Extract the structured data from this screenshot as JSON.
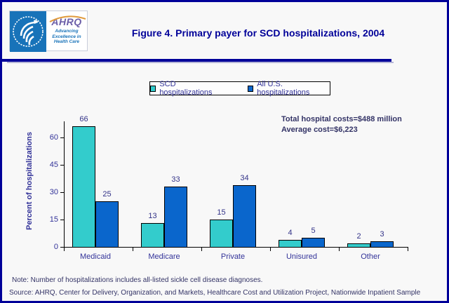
{
  "window": {
    "background": "#F8F8F8",
    "border_color": "#000099"
  },
  "header": {
    "title": "Figure 4. Primary payer for SCD hospitalizations, 2004",
    "logo": {
      "acronym": "AHRQ",
      "tagline_lines": [
        "Advancing",
        "Excellence in",
        "Health Care"
      ]
    }
  },
  "annotation": {
    "line1": "Total hospital costs=$488 million",
    "line2": "Average cost=$6,223"
  },
  "chart_data": {
    "type": "bar",
    "title": "Figure 4. Primary payer for SCD hospitalizations, 2004",
    "categories": [
      "Medicaid",
      "Medicare",
      "Private",
      "Unisured",
      "Other"
    ],
    "series": [
      {
        "name": "SCD hospitalizations",
        "color": "#33CCCC",
        "values": [
          66,
          13,
          15,
          4,
          2
        ]
      },
      {
        "name": "All U.S. hospitalizations",
        "color": "#0A66CC",
        "values": [
          25,
          33,
          34,
          5,
          3
        ]
      }
    ],
    "ylabel": "Percent of hospitalizations",
    "xlabel": "",
    "yticks": [
      0,
      15,
      30,
      45,
      60
    ],
    "ylim": [
      0,
      66
    ],
    "grid": false,
    "legend_position": "top",
    "value_labels_shown": true
  },
  "footer": {
    "note": "Note: Number of hospitalizations includes all-listed sickle cell disease diagnoses.",
    "source": "Source: AHRQ, Center for Delivery, Organization, and Markets, Healthcare Cost and Utilization Project, Nationwide Inpatient Sample"
  }
}
